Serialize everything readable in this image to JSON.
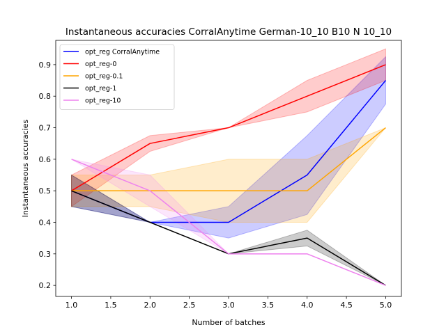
{
  "chart_data": {
    "type": "line",
    "title": "Instantaneous accuracies CorralAnytime German-10_10 B10 N 10_10",
    "xlabel": "Number of batches",
    "ylabel": "Instantaneous accuracies",
    "xlim": [
      0.8,
      5.2
    ],
    "ylim": [
      0.165,
      0.977
    ],
    "xticks": [
      1.0,
      1.5,
      2.0,
      2.5,
      3.0,
      3.5,
      4.0,
      4.5,
      5.0
    ],
    "yticks": [
      0.2,
      0.3,
      0.4,
      0.5,
      0.6,
      0.7,
      0.8,
      0.9
    ],
    "x": [
      1,
      2,
      3,
      4,
      5
    ],
    "legend_position": "top-left",
    "grid": false,
    "series": [
      {
        "name": "opt_reg CorralAnytime",
        "color": "#0000ff",
        "values": [
          0.5,
          0.4,
          0.4,
          0.55,
          0.85
        ],
        "lower": [
          0.45,
          0.4,
          0.35,
          0.425,
          0.775
        ],
        "upper": [
          0.55,
          0.4,
          0.45,
          0.675,
          0.925
        ]
      },
      {
        "name": "opt_reg-0",
        "color": "#ff0000",
        "values": [
          0.5,
          0.65,
          0.7,
          0.8,
          0.9
        ],
        "lower": [
          0.45,
          0.625,
          0.7,
          0.75,
          0.85
        ],
        "upper": [
          0.55,
          0.675,
          0.7,
          0.85,
          0.95
        ]
      },
      {
        "name": "opt_reg-0.1",
        "color": "#ffa500",
        "values": [
          0.5,
          0.5,
          0.5,
          0.5,
          0.7
        ],
        "lower": [
          0.45,
          0.45,
          0.4,
          0.4,
          0.7
        ],
        "upper": [
          0.55,
          0.55,
          0.6,
          0.6,
          0.7
        ]
      },
      {
        "name": "opt_reg-1",
        "color": "#000000",
        "values": [
          0.5,
          0.4,
          0.3,
          0.35,
          0.2
        ],
        "lower": [
          0.45,
          0.4,
          0.3,
          0.325,
          0.2
        ],
        "upper": [
          0.55,
          0.4,
          0.3,
          0.375,
          0.2
        ]
      },
      {
        "name": "opt_reg-10",
        "color": "#ee82ee",
        "values": [
          0.6,
          0.5,
          0.3,
          0.3,
          0.2
        ],
        "lower": [
          0.6,
          0.45,
          0.3,
          0.3,
          0.2
        ],
        "upper": [
          0.6,
          0.55,
          0.3,
          0.3,
          0.2
        ]
      }
    ]
  }
}
